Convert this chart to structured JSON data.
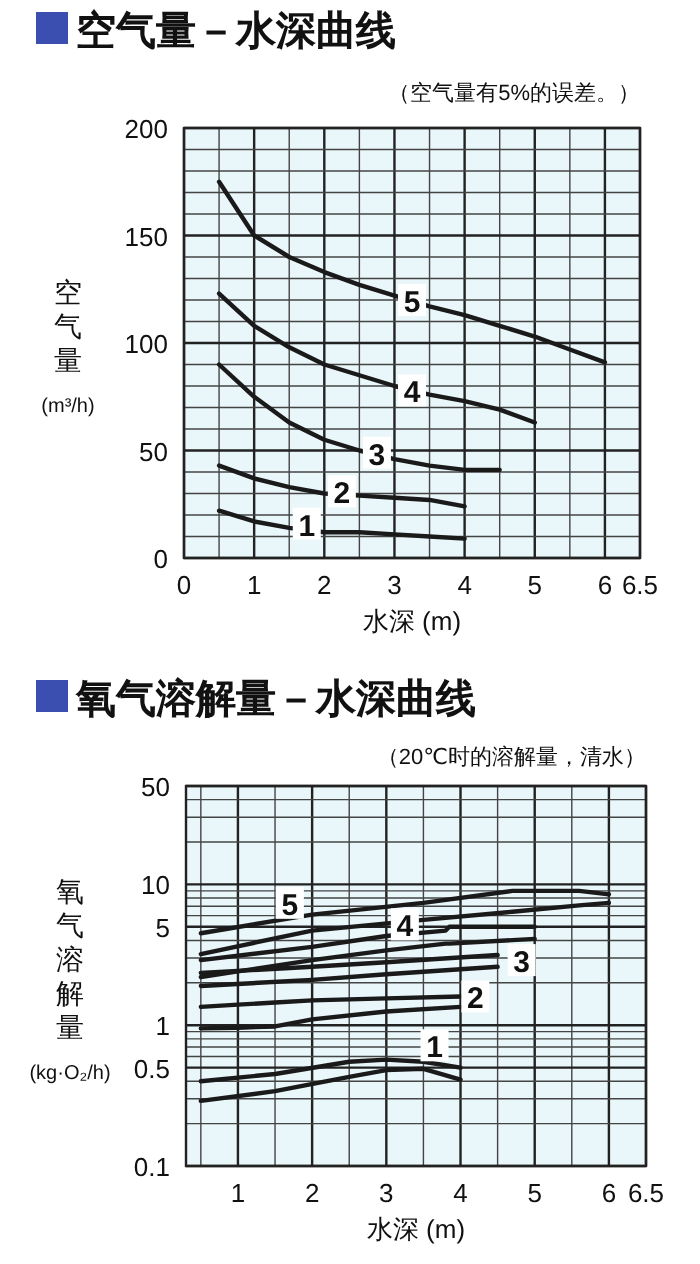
{
  "chart_data": [
    {
      "type": "line",
      "title": "空气量－水深曲线",
      "subtitle": "（空气量有5%的误差。）",
      "xlabel": "水深 (m)",
      "ylabel": "空气量 (m³/h)",
      "xlim": [
        0,
        6.5
      ],
      "ylim": [
        0,
        200
      ],
      "xticks": [
        0,
        {
          "value": 0.5,
          "label": null
        },
        1,
        {
          "value": 1.5,
          "label": null
        },
        2,
        {
          "value": 2.5,
          "label": null
        },
        3,
        {
          "value": 3.5,
          "label": null
        },
        4,
        {
          "value": 4.5,
          "label": null
        },
        5,
        {
          "value": 5.5,
          "label": null
        },
        6,
        6.5
      ],
      "yticks": [
        0,
        {
          "value": 10,
          "label": null
        },
        {
          "value": 20,
          "label": null
        },
        {
          "value": 30,
          "label": null
        },
        {
          "value": 40,
          "label": null
        },
        50,
        {
          "value": 60,
          "label": null
        },
        {
          "value": 70,
          "label": null
        },
        {
          "value": 80,
          "label": null
        },
        {
          "value": 90,
          "label": null
        },
        100,
        {
          "value": 110,
          "label": null
        },
        {
          "value": 120,
          "label": null
        },
        {
          "value": 130,
          "label": null
        },
        {
          "value": 140,
          "label": null
        },
        150,
        {
          "value": 160,
          "label": null
        },
        {
          "value": 170,
          "label": null
        },
        {
          "value": 180,
          "label": null
        },
        {
          "value": 190,
          "label": null
        },
        200
      ],
      "grid": true,
      "series": [
        {
          "color": "#1a1a1a",
          "x": [
            0.5,
            1,
            1.5,
            2,
            2.5,
            3,
            3.5,
            4
          ],
          "values": [
            22,
            17,
            14,
            12,
            12,
            11,
            10,
            9
          ]
        },
        {
          "color": "#1a1a1a",
          "x": [
            0.5,
            1,
            1.5,
            2,
            2.5,
            3,
            3.5,
            4
          ],
          "values": [
            43,
            37,
            33,
            30,
            29,
            28,
            27,
            24
          ]
        },
        {
          "color": "#1a1a1a",
          "x": [
            0.5,
            1,
            1.5,
            2,
            2.5,
            3,
            3.5,
            4,
            4.5
          ],
          "values": [
            90,
            75,
            63,
            55,
            50,
            46,
            43,
            41,
            41
          ]
        },
        {
          "color": "#1a1a1a",
          "x": [
            0.5,
            1,
            1.5,
            2,
            2.5,
            3,
            3.5,
            4,
            4.5,
            5
          ],
          "values": [
            123,
            108,
            98,
            90,
            85,
            80,
            76,
            73,
            69,
            63
          ]
        },
        {
          "color": "#1a1a1a",
          "x": [
            0.5,
            1,
            1.5,
            2,
            2.5,
            3,
            3.5,
            4,
            4.5,
            5,
            5.5,
            6
          ],
          "values": [
            175,
            150,
            140,
            133,
            127,
            122,
            117,
            113,
            108,
            103,
            97,
            91
          ]
        }
      ],
      "annotations": [
        {
          "text": "1",
          "x": 1.75,
          "y": 16
        },
        {
          "text": "2",
          "x": 2.25,
          "y": 31
        },
        {
          "text": "3",
          "x": 2.75,
          "y": 49
        },
        {
          "text": "4",
          "x": 3.25,
          "y": 78
        },
        {
          "text": "5",
          "x": 3.25,
          "y": 120
        }
      ]
    },
    {
      "type": "line",
      "title": "氧气溶解量－水深曲线",
      "subtitle": "（20℃时的溶解量，清水）",
      "xlabel": "水深 (m)",
      "ylabel": "氧气溶解量 (kg·O₂/h)",
      "log": "y",
      "xlim": [
        0.3,
        6.5
      ],
      "ylim": [
        0.1,
        50
      ],
      "xticks": [
        {
          "value": 0.5,
          "label": null
        },
        1,
        {
          "value": 1.5,
          "label": null
        },
        2,
        {
          "value": 2.5,
          "label": null
        },
        3,
        {
          "value": 3.5,
          "label": null
        },
        4,
        {
          "value": 4.5,
          "label": null
        },
        5,
        {
          "value": 5.5,
          "label": null
        },
        6,
        6.5
      ],
      "yticks": [
        0.1,
        {
          "value": 0.2,
          "label": null
        },
        {
          "value": 0.3,
          "label": null
        },
        {
          "value": 0.4,
          "label": null
        },
        0.5,
        {
          "value": 0.6,
          "label": null
        },
        {
          "value": 0.7,
          "label": null
        },
        {
          "value": 0.8,
          "label": null
        },
        {
          "value": 0.9,
          "label": null
        },
        1,
        {
          "value": 2,
          "label": null
        },
        {
          "value": 3,
          "label": null
        },
        {
          "value": 4,
          "label": null
        },
        5,
        {
          "value": 6,
          "label": null
        },
        {
          "value": 7,
          "label": null
        },
        {
          "value": 8,
          "label": null
        },
        {
          "value": 9,
          "label": null
        },
        10,
        {
          "value": 20,
          "label": null
        },
        {
          "value": 30,
          "label": null
        },
        {
          "value": 40,
          "label": null
        },
        50
      ],
      "grid": true,
      "series": [
        {
          "color": "#1a1a1a",
          "x": [
            0.5,
            1.5,
            2.5,
            3,
            3.5,
            4
          ],
          "values": [
            0.4,
            0.45,
            0.55,
            0.57,
            0.55,
            0.5
          ]
        },
        {
          "color": "#1a1a1a",
          "x": [
            0.5,
            1.5,
            2.5,
            3,
            3.5,
            4
          ],
          "values": [
            0.29,
            0.34,
            0.43,
            0.48,
            0.49,
            0.41
          ]
        },
        {
          "color": "#1a1a1a",
          "x": [
            0.5,
            1,
            1.5,
            2,
            3,
            4
          ],
          "values": [
            1.35,
            1.4,
            1.45,
            1.5,
            1.55,
            1.6
          ]
        },
        {
          "color": "#1a1a1a",
          "x": [
            0.5,
            1,
            1.5,
            2,
            3,
            4
          ],
          "values": [
            0.95,
            0.96,
            0.98,
            1.1,
            1.25,
            1.35
          ]
        },
        {
          "color": "#1a1a1a",
          "x": [
            0.5,
            2,
            3,
            4.5
          ],
          "values": [
            2.35,
            2.6,
            2.8,
            3.15
          ]
        },
        {
          "color": "#1a1a1a",
          "x": [
            0.5,
            2,
            3,
            4.5
          ],
          "values": [
            1.9,
            2.1,
            2.3,
            2.6
          ]
        },
        {
          "color": "#1a1a1a",
          "x": [
            0.5,
            2,
            3,
            3.8,
            3.85,
            5
          ],
          "values": [
            2.9,
            3.6,
            4.3,
            4.7,
            5.0,
            5.0
          ]
        },
        {
          "color": "#1a1a1a",
          "x": [
            0.5,
            2,
            3,
            3.8,
            3.85,
            5
          ],
          "values": [
            2.2,
            2.9,
            3.4,
            3.8,
            3.8,
            4.1
          ]
        },
        {
          "color": "#1a1a1a",
          "x": [
            0.5,
            2,
            3.5,
            4.7,
            5.6,
            6
          ],
          "values": [
            4.5,
            6.1,
            7.4,
            9.0,
            9.0,
            8.5
          ]
        },
        {
          "color": "#1a1a1a",
          "x": [
            0.5,
            2,
            3.5,
            4.7,
            5.6,
            6
          ],
          "values": [
            3.2,
            4.7,
            5.6,
            6.4,
            7.1,
            7.4
          ]
        }
      ],
      "annotations": [
        {
          "text": "1",
          "x": 3.65,
          "y": 0.72
        },
        {
          "text": "2",
          "x": 4.2,
          "y": 1.6
        },
        {
          "text": "3",
          "x": 4.5,
          "y": 2.9
        },
        {
          "text": "4",
          "x": 3.25,
          "y": 5.2
        },
        {
          "text": "5",
          "x": 1.7,
          "y": 7.4
        }
      ]
    }
  ]
}
